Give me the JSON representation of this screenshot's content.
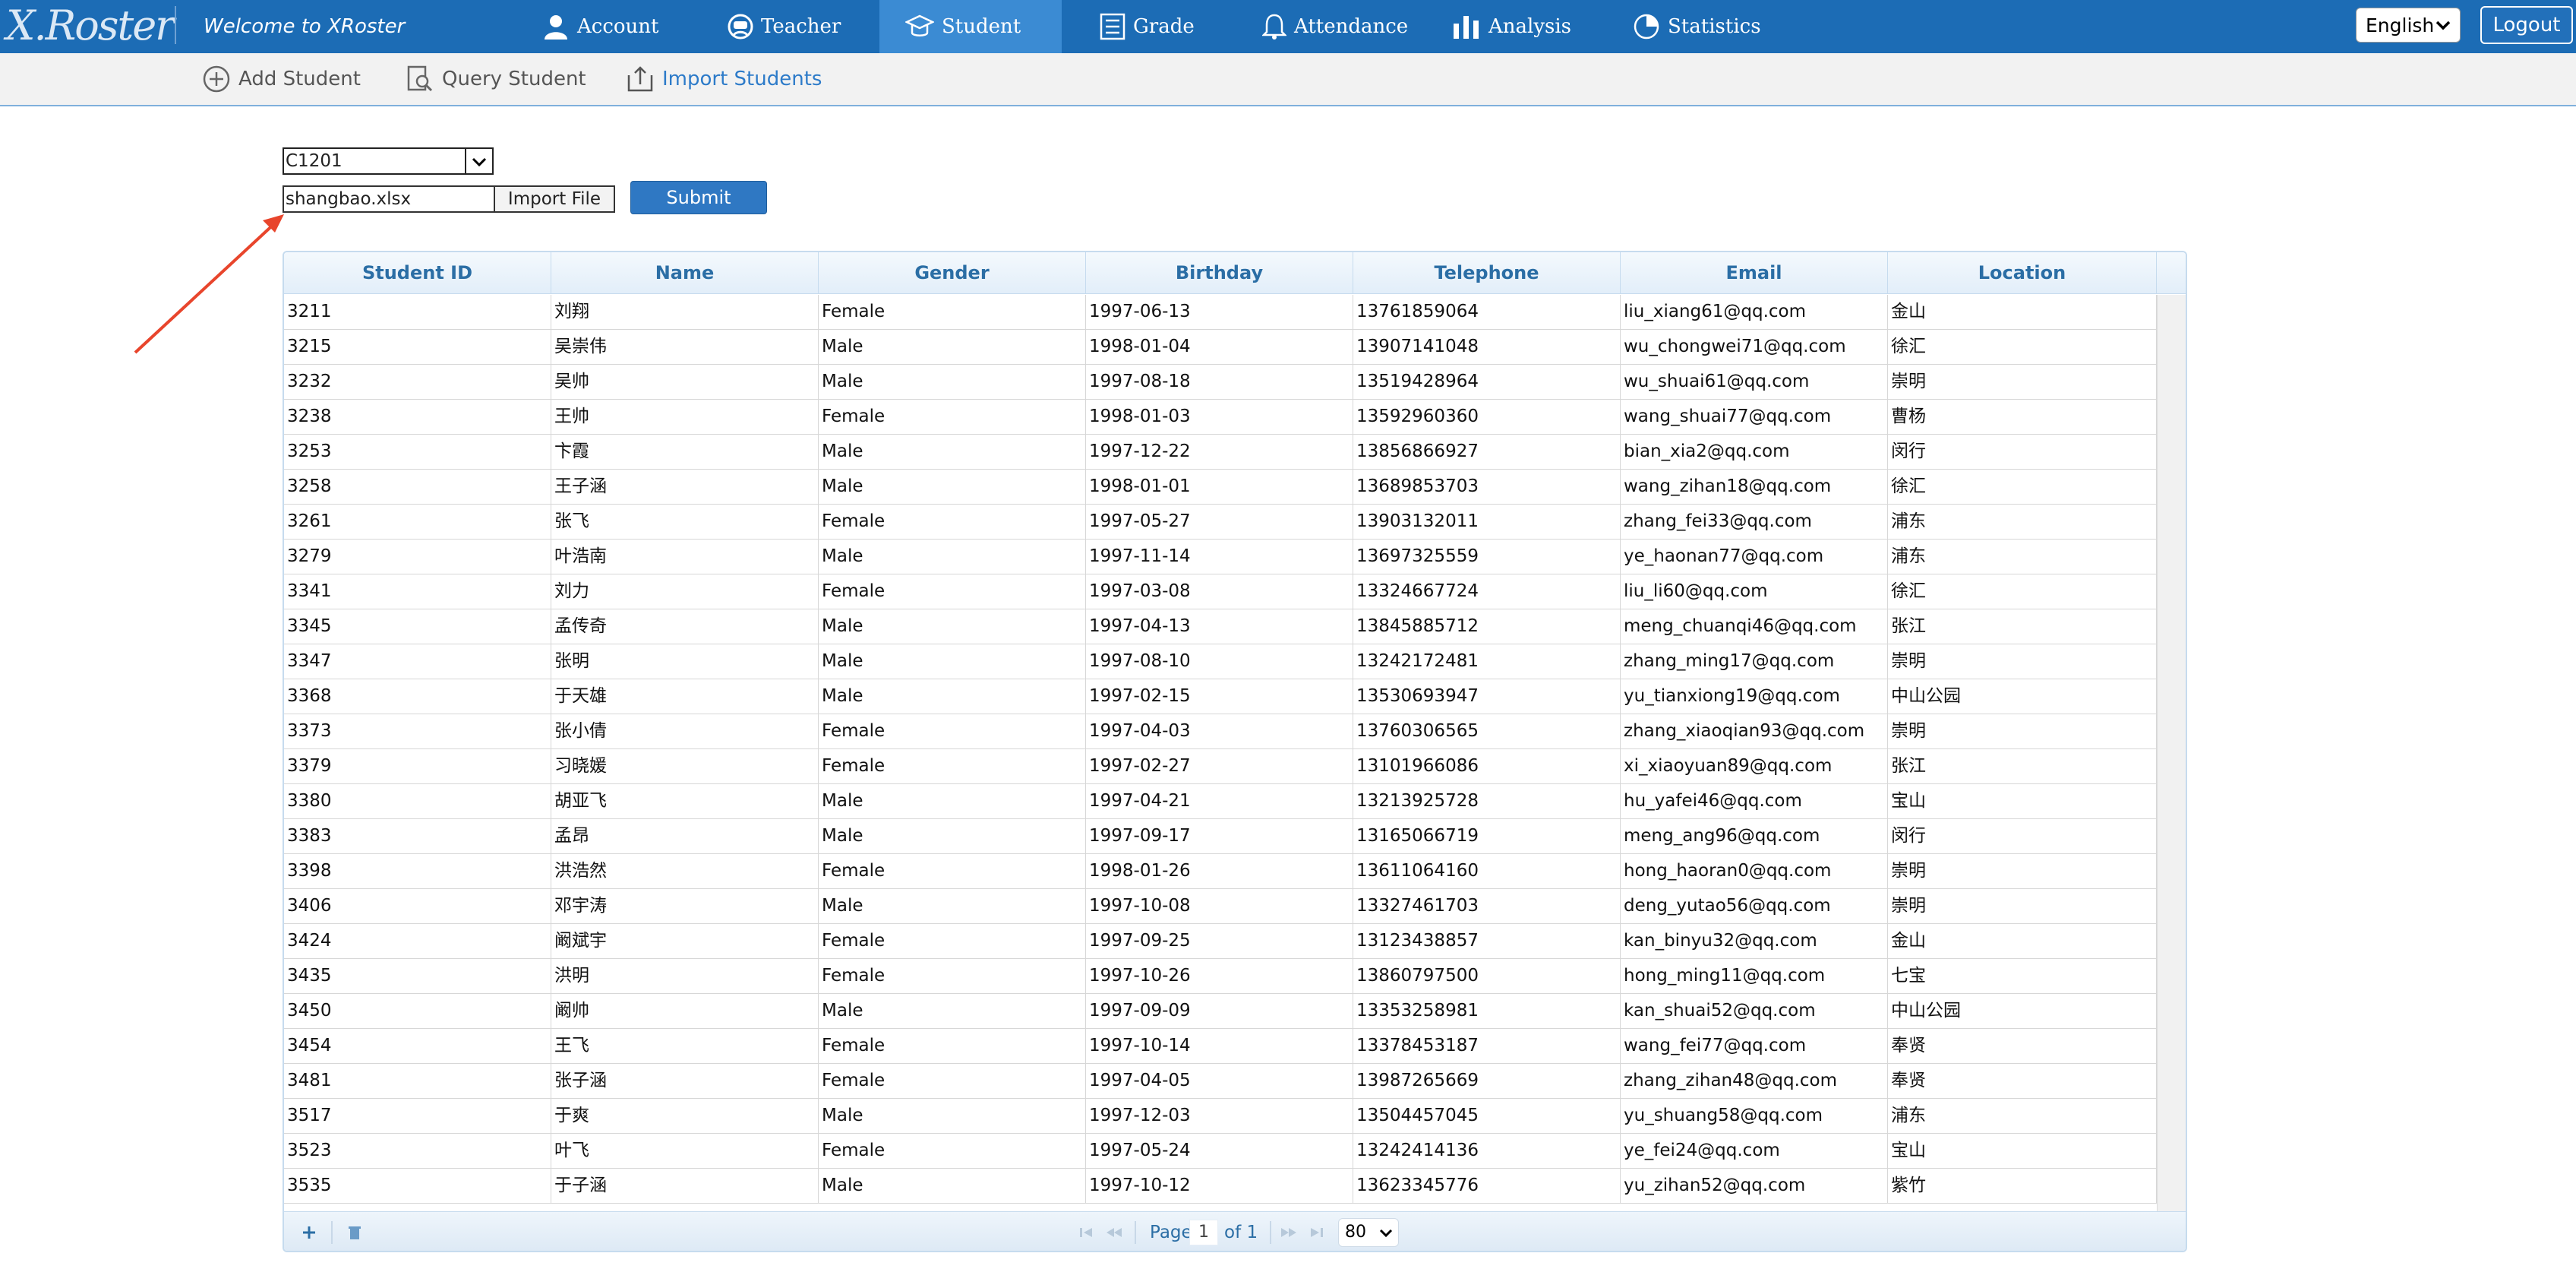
{
  "header": {
    "logo_text": "X.Roster",
    "welcome": "Welcome to XRoster",
    "nav": [
      {
        "label": "Account",
        "icon": "user-icon"
      },
      {
        "label": "Teacher",
        "icon": "teacher-icon"
      },
      {
        "label": "Student",
        "icon": "student-icon",
        "active": true
      },
      {
        "label": "Grade",
        "icon": "grade-icon"
      },
      {
        "label": "Attendance",
        "icon": "bell-icon"
      },
      {
        "label": "Analysis",
        "icon": "bar-chart-icon"
      },
      {
        "label": "Statistics",
        "icon": "pie-chart-icon"
      }
    ],
    "language": "English",
    "logout": "Logout"
  },
  "subnav": {
    "items": [
      {
        "label": "Add Student",
        "icon": "plus-circle-icon"
      },
      {
        "label": "Query Student",
        "icon": "search-document-icon"
      },
      {
        "label": "Import Students",
        "icon": "import-icon",
        "active": true
      }
    ]
  },
  "form": {
    "class_select": "C1201",
    "file_name": "shangbao.xlsx",
    "import_file_label": "Import File",
    "submit_label": "Submit"
  },
  "table": {
    "columns": [
      "Student ID",
      "Name",
      "Gender",
      "Birthday",
      "Telephone",
      "Email",
      "Location"
    ],
    "rows": [
      [
        "3211",
        "刘翔",
        "Female",
        "1997-06-13",
        "13761859064",
        "liu_xiang61@qq.com",
        "金山"
      ],
      [
        "3215",
        "吴崇伟",
        "Male",
        "1998-01-04",
        "13907141048",
        "wu_chongwei71@qq.com",
        "徐汇"
      ],
      [
        "3232",
        "吴帅",
        "Male",
        "1997-08-18",
        "13519428964",
        "wu_shuai61@qq.com",
        "崇明"
      ],
      [
        "3238",
        "王帅",
        "Female",
        "1998-01-03",
        "13592960360",
        "wang_shuai77@qq.com",
        "曹杨"
      ],
      [
        "3253",
        "卞霞",
        "Male",
        "1997-12-22",
        "13856866927",
        "bian_xia2@qq.com",
        "闵行"
      ],
      [
        "3258",
        "王子涵",
        "Male",
        "1998-01-01",
        "13689853703",
        "wang_zihan18@qq.com",
        "徐汇"
      ],
      [
        "3261",
        "张飞",
        "Female",
        "1997-05-27",
        "13903132011",
        "zhang_fei33@qq.com",
        "浦东"
      ],
      [
        "3279",
        "叶浩南",
        "Male",
        "1997-11-14",
        "13697325559",
        "ye_haonan77@qq.com",
        "浦东"
      ],
      [
        "3341",
        "刘力",
        "Female",
        "1997-03-08",
        "13324667724",
        "liu_li60@qq.com",
        "徐汇"
      ],
      [
        "3345",
        "孟传奇",
        "Male",
        "1997-04-13",
        "13845885712",
        "meng_chuanqi46@qq.com",
        "张江"
      ],
      [
        "3347",
        "张明",
        "Male",
        "1997-08-10",
        "13242172481",
        "zhang_ming17@qq.com",
        "崇明"
      ],
      [
        "3368",
        "于天雄",
        "Male",
        "1997-02-15",
        "13530693947",
        "yu_tianxiong19@qq.com",
        "中山公园"
      ],
      [
        "3373",
        "张小倩",
        "Female",
        "1997-04-03",
        "13760306565",
        "zhang_xiaoqian93@qq.com",
        "崇明"
      ],
      [
        "3379",
        "习晓媛",
        "Female",
        "1997-02-27",
        "13101966086",
        "xi_xiaoyuan89@qq.com",
        "张江"
      ],
      [
        "3380",
        "胡亚飞",
        "Male",
        "1997-04-21",
        "13213925728",
        "hu_yafei46@qq.com",
        "宝山"
      ],
      [
        "3383",
        "孟昂",
        "Male",
        "1997-09-17",
        "13165066719",
        "meng_ang96@qq.com",
        "闵行"
      ],
      [
        "3398",
        "洪浩然",
        "Female",
        "1998-01-26",
        "13611064160",
        "hong_haoran0@qq.com",
        "崇明"
      ],
      [
        "3406",
        "邓宇涛",
        "Male",
        "1997-10-08",
        "13327461703",
        "deng_yutao56@qq.com",
        "崇明"
      ],
      [
        "3424",
        "阚斌宇",
        "Female",
        "1997-09-25",
        "13123438857",
        "kan_binyu32@qq.com",
        "金山"
      ],
      [
        "3435",
        "洪明",
        "Female",
        "1997-10-26",
        "13860797500",
        "hong_ming11@qq.com",
        "七宝"
      ],
      [
        "3450",
        "阚帅",
        "Male",
        "1997-09-09",
        "13353258981",
        "kan_shuai52@qq.com",
        "中山公园"
      ],
      [
        "3454",
        "王飞",
        "Female",
        "1997-10-14",
        "13378453187",
        "wang_fei77@qq.com",
        "奉贤"
      ],
      [
        "3481",
        "张子涵",
        "Female",
        "1997-04-05",
        "13987265669",
        "zhang_zihan48@qq.com",
        "奉贤"
      ],
      [
        "3517",
        "于爽",
        "Male",
        "1997-12-03",
        "13504457045",
        "yu_shuang58@qq.com",
        "浦东"
      ],
      [
        "3523",
        "叶飞",
        "Female",
        "1997-05-24",
        "13242414136",
        "ye_fei24@qq.com",
        "宝山"
      ],
      [
        "3535",
        "于子涵",
        "Male",
        "1997-10-12",
        "13623345776",
        "yu_zihan52@qq.com",
        "紫竹"
      ]
    ]
  },
  "pager": {
    "page_label": "Page",
    "page": "1",
    "of_label": "of 1",
    "page_size": "80"
  },
  "colors": {
    "nav_bg": "#1c6cb5",
    "nav_active": "#3b8bd3",
    "header_text": "#2b6ea5",
    "submit_bg": "#2f78c3",
    "arrow": "#e8452c"
  }
}
